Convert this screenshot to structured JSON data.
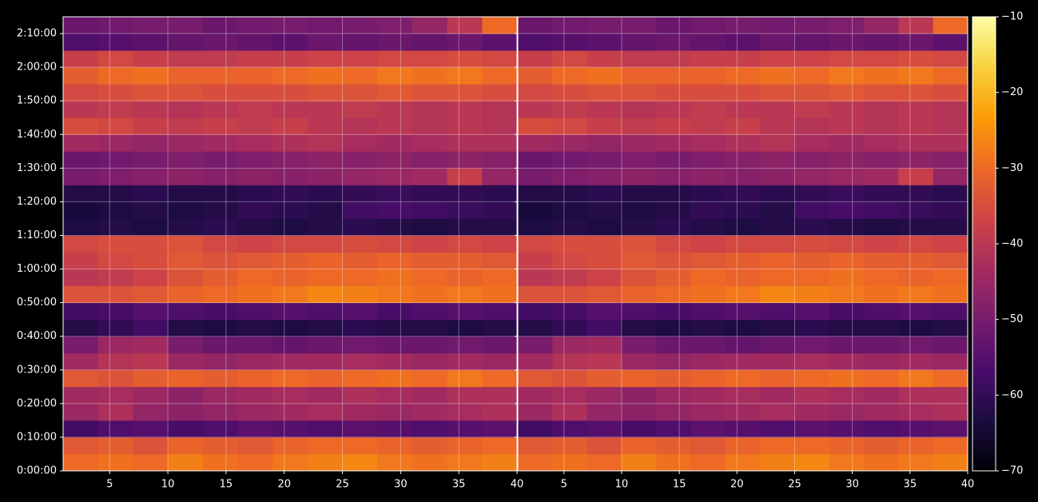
{
  "chart_data": [
    {
      "type": "heatmap",
      "x_edges": [
        1,
        4,
        7,
        10,
        13,
        16,
        19,
        22,
        25,
        28,
        31,
        34,
        37,
        40
      ],
      "y_edges": [
        0,
        300,
        600,
        900,
        1200,
        1500,
        1800,
        2100,
        2400,
        2700,
        3000,
        3300,
        3600,
        3900,
        4200,
        4500,
        4800,
        5100,
        5400,
        5700,
        6000,
        6300,
        6600,
        6900,
        7200,
        7500,
        7800,
        8100
      ],
      "z": [
        [
          -30,
          -29,
          -30,
          -27,
          -29,
          -30,
          -28,
          -27,
          -26,
          -28,
          -29,
          -28,
          -27
        ],
        [
          -33,
          -32,
          -34,
          -31,
          -32,
          -33,
          -31,
          -30,
          -30,
          -31,
          -32,
          -31,
          -30
        ],
        [
          -58,
          -56,
          -55,
          -57,
          -56,
          -54,
          -55,
          -56,
          -54,
          -55,
          -56,
          -55,
          -54
        ],
        [
          -45,
          -42,
          -46,
          -47,
          -46,
          -45,
          -44,
          -43,
          -44,
          -45,
          -44,
          -43,
          -42
        ],
        [
          -44,
          -43,
          -45,
          -47,
          -45,
          -44,
          -43,
          -44,
          -42,
          -43,
          -44,
          -42,
          -42
        ],
        [
          -33,
          -34,
          -32,
          -31,
          -32,
          -31,
          -30,
          -31,
          -30,
          -29,
          -30,
          -28,
          -30
        ],
        [
          -44,
          -41,
          -40,
          -45,
          -46,
          -45,
          -44,
          -44,
          -43,
          -44,
          -45,
          -44,
          -45
        ],
        [
          -50,
          -45,
          -44,
          -50,
          -52,
          -52,
          -53,
          -52,
          -51,
          -52,
          -52,
          -51,
          -52
        ],
        [
          -62,
          -60,
          -58,
          -62,
          -63,
          -62,
          -63,
          -62,
          -61,
          -62,
          -62,
          -63,
          -62
        ],
        [
          -58,
          -57,
          -55,
          -56,
          -57,
          -56,
          -55,
          -56,
          -55,
          -57,
          -56,
          -55,
          -56
        ],
        [
          -34,
          -34,
          -33,
          -31,
          -30,
          -29,
          -28,
          -26,
          -27,
          -28,
          -29,
          -28,
          -29
        ],
        [
          -40,
          -39,
          -37,
          -34,
          -32,
          -30,
          -31,
          -30,
          -30,
          -29,
          -30,
          -31,
          -30
        ],
        [
          -38,
          -36,
          -35,
          -33,
          -34,
          -33,
          -32,
          -31,
          -32,
          -31,
          -32,
          -32,
          -33
        ],
        [
          -36,
          -35,
          -35,
          -34,
          -36,
          -37,
          -36,
          -36,
          -35,
          -36,
          -37,
          -36,
          -37
        ],
        [
          -63,
          -62,
          -63,
          -62,
          -61,
          -62,
          -63,
          -62,
          -61,
          -62,
          -63,
          -62,
          -62
        ],
        [
          -64,
          -63,
          -62,
          -63,
          -62,
          -60,
          -61,
          -62,
          -58,
          -57,
          -58,
          -59,
          -60
        ],
        [
          -62,
          -62,
          -61,
          -62,
          -62,
          -61,
          -60,
          -61,
          -60,
          -59,
          -60,
          -60,
          -61
        ],
        [
          -50,
          -49,
          -48,
          -47,
          -48,
          -47,
          -48,
          -47,
          -46,
          -45,
          -44,
          -38,
          -46
        ],
        [
          -52,
          -51,
          -50,
          -49,
          -50,
          -49,
          -48,
          -47,
          -48,
          -47,
          -48,
          -47,
          -48
        ],
        [
          -44,
          -45,
          -46,
          -45,
          -44,
          -43,
          -42,
          -41,
          -43,
          -44,
          -43,
          -42,
          -42
        ],
        [
          -35,
          -36,
          -38,
          -39,
          -38,
          -39,
          -38,
          -40,
          -41,
          -40,
          -41,
          -40,
          -41
        ],
        [
          -40,
          -39,
          -40,
          -41,
          -40,
          -39,
          -40,
          -40,
          -39,
          -40,
          -41,
          -40,
          -41
        ],
        [
          -36,
          -35,
          -34,
          -34,
          -35,
          -35,
          -35,
          -34,
          -34,
          -33,
          -34,
          -34,
          -35
        ],
        [
          -32,
          -30,
          -29,
          -31,
          -31,
          -31,
          -30,
          -29,
          -30,
          -28,
          -29,
          -28,
          -30
        ],
        [
          -38,
          -36,
          -38,
          -39,
          -39,
          -38,
          -38,
          -37,
          -37,
          -36,
          -36,
          -35,
          -36
        ],
        [
          -56,
          -55,
          -54,
          -53,
          -52,
          -53,
          -54,
          -52,
          -53,
          -52,
          -53,
          -52,
          -54
        ],
        [
          -52,
          -51,
          -50,
          -50,
          -52,
          -51,
          -50,
          -51,
          -50,
          -49,
          -46,
          -40,
          -30
        ]
      ],
      "xlim": [
        1,
        40
      ],
      "ylim": [
        0,
        8100
      ],
      "xticks": [
        5,
        10,
        15,
        20,
        25,
        30,
        35,
        40
      ],
      "yticks": [
        {
          "value": 0,
          "label": "0:00:00"
        },
        {
          "value": 600,
          "label": "0:10:00"
        },
        {
          "value": 1200,
          "label": "0:20:00"
        },
        {
          "value": 1800,
          "label": "0:30:00"
        },
        {
          "value": 2400,
          "label": "0:40:00"
        },
        {
          "value": 3000,
          "label": "0:50:00"
        },
        {
          "value": 3600,
          "label": "1:00:00"
        },
        {
          "value": 4200,
          "label": "1:10:00"
        },
        {
          "value": 4800,
          "label": "1:20:00"
        },
        {
          "value": 5400,
          "label": "1:30:00"
        },
        {
          "value": 6000,
          "label": "1:40:00"
        },
        {
          "value": 6600,
          "label": "1:50:00"
        },
        {
          "value": 7200,
          "label": "2:00:00"
        },
        {
          "value": 7800,
          "label": "2:10:00"
        }
      ],
      "grid": true
    },
    {
      "type": "heatmap",
      "x_edges": [
        1,
        4,
        7,
        10,
        13,
        16,
        19,
        22,
        25,
        28,
        31,
        34,
        37,
        40
      ],
      "y_edges": [
        0,
        300,
        600,
        900,
        1200,
        1500,
        1800,
        2100,
        2400,
        2700,
        3000,
        3300,
        3600,
        3900,
        4200,
        4500,
        4800,
        5100,
        5400,
        5700,
        6000,
        6300,
        6600,
        6900,
        7200,
        7500,
        7800,
        8100
      ],
      "z": [
        [
          -30,
          -29,
          -30,
          -27,
          -29,
          -30,
          -28,
          -27,
          -26,
          -28,
          -29,
          -28,
          -27
        ],
        [
          -33,
          -32,
          -34,
          -31,
          -32,
          -33,
          -31,
          -30,
          -30,
          -31,
          -32,
          -31,
          -30
        ],
        [
          -58,
          -56,
          -55,
          -57,
          -56,
          -54,
          -55,
          -56,
          -54,
          -55,
          -56,
          -55,
          -54
        ],
        [
          -45,
          -42,
          -46,
          -47,
          -46,
          -45,
          -44,
          -43,
          -44,
          -45,
          -44,
          -43,
          -42
        ],
        [
          -44,
          -43,
          -45,
          -47,
          -45,
          -44,
          -43,
          -44,
          -42,
          -43,
          -44,
          -42,
          -42
        ],
        [
          -33,
          -34,
          -32,
          -31,
          -32,
          -31,
          -30,
          -31,
          -30,
          -29,
          -30,
          -28,
          -30
        ],
        [
          -44,
          -41,
          -40,
          -45,
          -46,
          -45,
          -44,
          -44,
          -43,
          -44,
          -45,
          -44,
          -45
        ],
        [
          -50,
          -45,
          -44,
          -50,
          -52,
          -52,
          -53,
          -52,
          -51,
          -52,
          -52,
          -51,
          -52
        ],
        [
          -62,
          -60,
          -58,
          -62,
          -63,
          -62,
          -63,
          -62,
          -61,
          -62,
          -62,
          -63,
          -62
        ],
        [
          -58,
          -57,
          -55,
          -56,
          -57,
          -56,
          -55,
          -56,
          -55,
          -57,
          -56,
          -55,
          -56
        ],
        [
          -34,
          -34,
          -33,
          -31,
          -30,
          -29,
          -28,
          -26,
          -27,
          -28,
          -29,
          -28,
          -29
        ],
        [
          -40,
          -39,
          -37,
          -34,
          -32,
          -30,
          -31,
          -30,
          -30,
          -29,
          -30,
          -31,
          -30
        ],
        [
          -38,
          -36,
          -35,
          -33,
          -34,
          -33,
          -32,
          -31,
          -32,
          -31,
          -32,
          -32,
          -33
        ],
        [
          -36,
          -35,
          -35,
          -34,
          -36,
          -37,
          -36,
          -36,
          -35,
          -36,
          -37,
          -36,
          -37
        ],
        [
          -63,
          -62,
          -63,
          -62,
          -61,
          -62,
          -63,
          -62,
          -61,
          -62,
          -63,
          -62,
          -62
        ],
        [
          -64,
          -63,
          -62,
          -63,
          -62,
          -60,
          -61,
          -62,
          -58,
          -57,
          -58,
          -59,
          -60
        ],
        [
          -62,
          -62,
          -61,
          -62,
          -62,
          -61,
          -60,
          -61,
          -60,
          -59,
          -60,
          -60,
          -61
        ],
        [
          -50,
          -49,
          -48,
          -47,
          -48,
          -47,
          -48,
          -47,
          -46,
          -45,
          -44,
          -38,
          -46
        ],
        [
          -52,
          -51,
          -50,
          -49,
          -50,
          -49,
          -48,
          -47,
          -48,
          -47,
          -48,
          -47,
          -48
        ],
        [
          -44,
          -45,
          -46,
          -45,
          -44,
          -43,
          -42,
          -41,
          -43,
          -44,
          -43,
          -42,
          -42
        ],
        [
          -35,
          -36,
          -38,
          -39,
          -38,
          -39,
          -38,
          -40,
          -41,
          -40,
          -41,
          -40,
          -41
        ],
        [
          -40,
          -39,
          -40,
          -41,
          -40,
          -39,
          -40,
          -40,
          -39,
          -40,
          -41,
          -40,
          -41
        ],
        [
          -36,
          -35,
          -34,
          -34,
          -35,
          -35,
          -35,
          -34,
          -34,
          -33,
          -34,
          -34,
          -35
        ],
        [
          -32,
          -30,
          -29,
          -31,
          -31,
          -31,
          -30,
          -29,
          -30,
          -28,
          -29,
          -28,
          -30
        ],
        [
          -38,
          -36,
          -38,
          -39,
          -39,
          -38,
          -38,
          -37,
          -37,
          -36,
          -36,
          -35,
          -36
        ],
        [
          -56,
          -55,
          -54,
          -53,
          -52,
          -53,
          -54,
          -52,
          -53,
          -52,
          -53,
          -52,
          -54
        ],
        [
          -52,
          -51,
          -50,
          -50,
          -52,
          -51,
          -50,
          -51,
          -50,
          -49,
          -46,
          -40,
          -30
        ]
      ],
      "xlim": [
        1,
        40
      ],
      "ylim": [
        0,
        8100
      ],
      "xticks": [
        5,
        10,
        15,
        20,
        25,
        30,
        35,
        40
      ],
      "sharey": true,
      "grid": true,
      "colorbar": {
        "clim": [
          -70,
          -10
        ],
        "ticks": [
          {
            "value": -70,
            "label": "−70"
          },
          {
            "value": -60,
            "label": "−60"
          },
          {
            "value": -50,
            "label": "−50"
          },
          {
            "value": -40,
            "label": "−40"
          },
          {
            "value": -30,
            "label": "−30"
          },
          {
            "value": -20,
            "label": "−20"
          },
          {
            "value": -10,
            "label": "−10"
          }
        ],
        "colormap": [
          "#000004",
          "#1b0c41",
          "#4a0c6b",
          "#781c6d",
          "#a52c60",
          "#cf4446",
          "#ed6925",
          "#fb9b06",
          "#f7d13d",
          "#fcffa4"
        ]
      }
    }
  ]
}
